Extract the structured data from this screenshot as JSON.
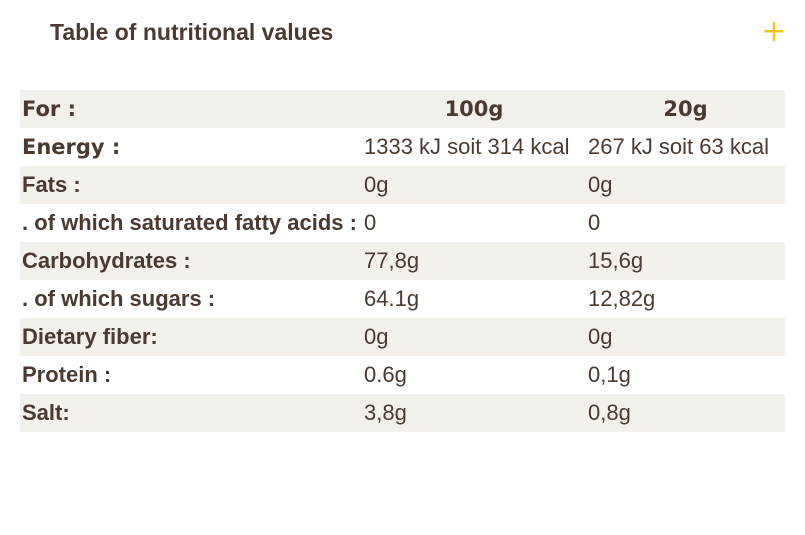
{
  "title": "Table of nutritional values",
  "toggle_icon": "+",
  "colors": {
    "accent": "#f1c40f",
    "text": "#4a3a31",
    "row_shade": "#f4f0ec"
  },
  "table": {
    "header": {
      "label": "For :",
      "col1": "100g",
      "col2": "20g"
    },
    "rows": [
      {
        "label": "Energy :",
        "v100": "1333 kJ soit 314 kcal",
        "v20": "267 kJ soit 63 kcal"
      },
      {
        "label": "Fats :",
        "v100": "0g",
        "v20": "0g"
      },
      {
        "label": ". of which saturated fatty acids :",
        "v100": "0",
        "v20": "0"
      },
      {
        "label": "Carbohydrates :",
        "v100": "77,8g",
        "v20": "15,6g"
      },
      {
        "label": ". of which sugars :",
        "v100": "64.1g",
        "v20": "12,82g"
      },
      {
        "label": "Dietary fiber:",
        "v100": "0g",
        "v20": "0g"
      },
      {
        "label": "Protein :",
        "v100": "0.6g",
        "v20": "0,1g"
      },
      {
        "label": "Salt:",
        "v100": "3,8g",
        "v20": "0,8g"
      }
    ]
  }
}
